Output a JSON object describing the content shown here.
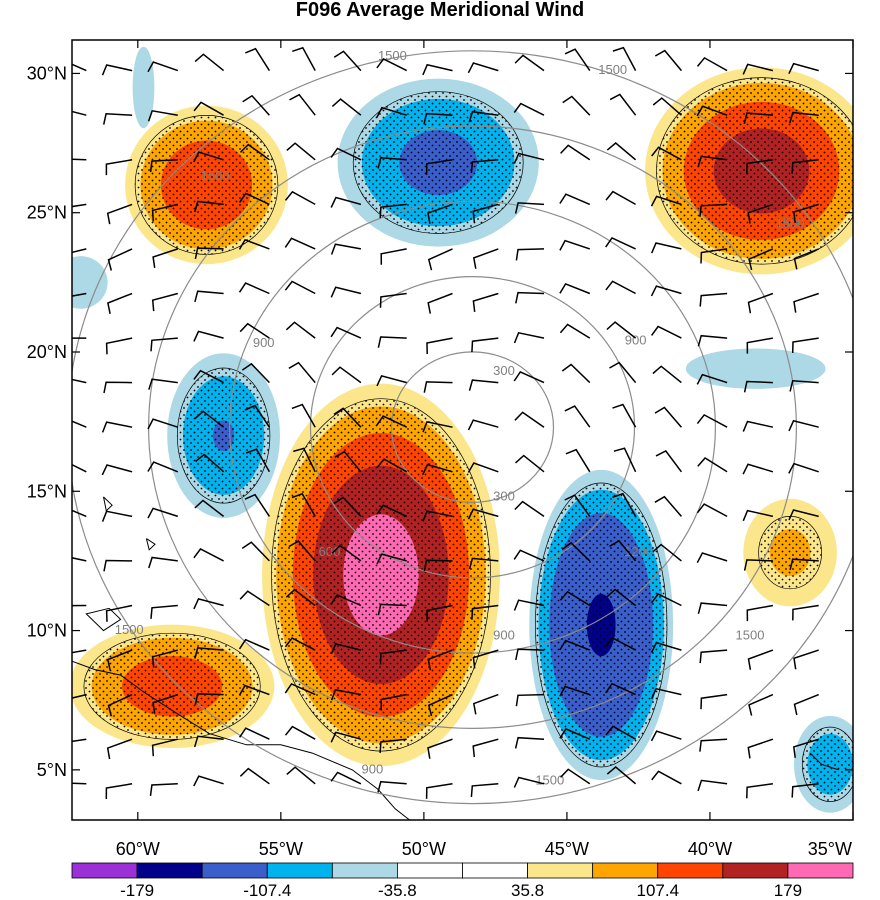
{
  "chart_data": {
    "type": "heatmap",
    "title": "F096 Average Meridional Wind",
    "xlabel": "",
    "ylabel": "",
    "xlim": [
      -62.3,
      -35
    ],
    "ylim": [
      3.2,
      31.2
    ],
    "x_ticks": [
      {
        "value": -60,
        "label": "60°W"
      },
      {
        "value": -55,
        "label": "55°W"
      },
      {
        "value": -50,
        "label": "50°W"
      },
      {
        "value": -45,
        "label": "45°W"
      },
      {
        "value": -40,
        "label": "40°W"
      },
      {
        "value": -35,
        "label": "35°W"
      }
    ],
    "y_ticks": [
      {
        "value": 5,
        "label": "5°N"
      },
      {
        "value": 10,
        "label": "10°N"
      },
      {
        "value": 15,
        "label": "15°N"
      },
      {
        "value": 20,
        "label": "20°N"
      },
      {
        "value": 25,
        "label": "25°N"
      },
      {
        "value": 30,
        "label": "30°N"
      }
    ],
    "colorbar": {
      "colors": [
        "#9b30d8",
        "#00008b",
        "#3a5fcd",
        "#00b2ee",
        "#add8e6",
        "#ffffff",
        "#ffffff",
        "#fce68c",
        "#ffa500",
        "#ff4500",
        "#b22222",
        "#ff69b4"
      ],
      "labels": [
        {
          "after_box": 1,
          "text": "-179"
        },
        {
          "after_box": 3,
          "text": "-107.4"
        },
        {
          "after_box": 5,
          "text": "-35.8"
        },
        {
          "after_box": 7,
          "text": "35.8"
        },
        {
          "after_box": 9,
          "text": "107.4"
        },
        {
          "after_box": 11,
          "text": "179"
        }
      ]
    },
    "range_rings": {
      "center": [
        -48.3,
        17.3
      ],
      "radii_km": [
        300,
        600,
        900,
        1200,
        1500
      ],
      "labels": [
        {
          "text": "300",
          "lon": -47.2,
          "lat": 19.3
        },
        {
          "text": "300",
          "lon": -47.2,
          "lat": 14.8
        },
        {
          "text": "600",
          "lon": -53.3,
          "lat": 12.8
        },
        {
          "text": "900",
          "lon": -55.6,
          "lat": 20.3
        },
        {
          "text": "900",
          "lon": -42.6,
          "lat": 20.4
        },
        {
          "text": "900",
          "lon": -47.2,
          "lat": 9.8
        },
        {
          "text": "1200",
          "lon": -42.5,
          "lat": 12.8
        },
        {
          "text": "1500",
          "lon": -51.1,
          "lat": 30.6
        },
        {
          "text": "1500",
          "lon": -43.4,
          "lat": 30.1
        },
        {
          "text": "1500",
          "lon": -57.3,
          "lat": 26.3
        },
        {
          "text": "1500",
          "lon": -37.2,
          "lat": 24.6
        },
        {
          "text": "1500",
          "lon": -38.6,
          "lat": 9.8
        },
        {
          "text": "1500",
          "lon": -45.6,
          "lat": 4.6
        },
        {
          "text": "1500",
          "lon": -60.3,
          "lat": 10.0
        },
        {
          "text": "900",
          "lon": -51.8,
          "lat": 5.0
        }
      ]
    },
    "features": [
      {
        "name": "trough northwest",
        "sign": "negative",
        "center": [
          -59.8,
          29.5
        ],
        "rx": 0.6,
        "ry": 2.3,
        "peak": -60
      },
      {
        "name": "ridge northwest",
        "sign": "positive",
        "center": [
          -57.6,
          26.0
        ],
        "rx": 3.3,
        "ry": 3.3,
        "peak": 140
      },
      {
        "name": "trough north-central",
        "sign": "negative",
        "center": [
          -49.5,
          26.8
        ],
        "rx": 4.2,
        "ry": 3.6,
        "peak": -120
      },
      {
        "name": "ridge northeast",
        "sign": "positive",
        "center": [
          -38.2,
          26.5
        ],
        "rx": 4.6,
        "ry": 4.2,
        "peak": 165
      },
      {
        "name": "trough west",
        "sign": "negative",
        "center": [
          -57.0,
          17.0
        ],
        "rx": 2.4,
        "ry": 3.6,
        "peak": -110
      },
      {
        "name": "ridge central",
        "sign": "positive",
        "center": [
          -51.5,
          12.0
        ],
        "rx": 4.6,
        "ry": 7.6,
        "peak": 195
      },
      {
        "name": "ridge southwest",
        "sign": "positive",
        "center": [
          -58.8,
          8.0
        ],
        "rx": 4.2,
        "ry": 2.6,
        "peak": 130
      },
      {
        "name": "trough southeast",
        "sign": "negative",
        "center": [
          -43.8,
          10.2
        ],
        "rx": 2.8,
        "ry": 6.2,
        "peak": -185
      },
      {
        "name": "ridge east",
        "sign": "positive",
        "center": [
          -37.2,
          12.8
        ],
        "rx": 2.2,
        "ry": 2.6,
        "peak": 80
      },
      {
        "name": "trough east",
        "sign": "negative",
        "center": [
          -38.4,
          19.4
        ],
        "rx": 5.4,
        "ry": 1.6,
        "peak": -45
      },
      {
        "name": "trough far southeast",
        "sign": "negative",
        "center": [
          -35.8,
          5.2
        ],
        "rx": 1.6,
        "ry": 2.2,
        "peak": -95
      },
      {
        "name": "trough west edge",
        "sign": "negative",
        "center": [
          -62.0,
          22.5
        ],
        "rx": 1.6,
        "ry": 1.6,
        "peak": -55
      }
    ]
  }
}
